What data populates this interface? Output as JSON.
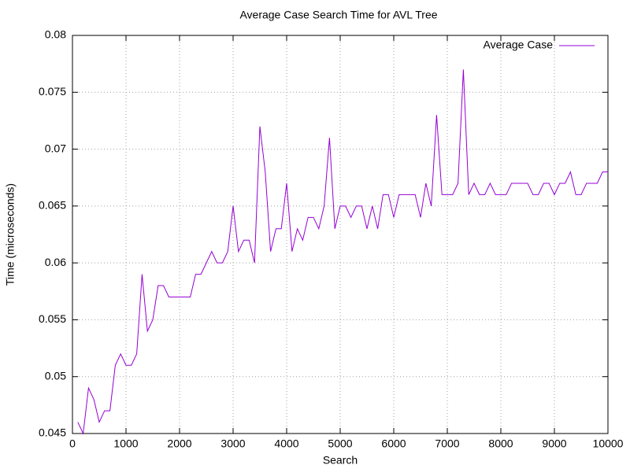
{
  "chart_data": {
    "type": "line",
    "title": "Average Case Search Time for AVL Tree",
    "x_label": "Search",
    "y_label": "Time (microseconds)",
    "x": [
      100,
      200,
      300,
      400,
      500,
      600,
      700,
      800,
      900,
      1000,
      1100,
      1200,
      1300,
      1400,
      1500,
      1600,
      1700,
      1800,
      1900,
      2000,
      2100,
      2200,
      2300,
      2400,
      2500,
      2600,
      2700,
      2800,
      2900,
      3000,
      3100,
      3200,
      3300,
      3400,
      3500,
      3600,
      3700,
      3800,
      3900,
      4000,
      4100,
      4200,
      4300,
      4400,
      4500,
      4600,
      4700,
      4800,
      4900,
      5000,
      5100,
      5200,
      5300,
      5400,
      5500,
      5600,
      5700,
      5800,
      5900,
      6000,
      6100,
      6200,
      6300,
      6400,
      6500,
      6600,
      6700,
      6800,
      6900,
      7000,
      7100,
      7200,
      7300,
      7400,
      7500,
      7600,
      7700,
      7800,
      7900,
      8000,
      8100,
      8200,
      8300,
      8400,
      8500,
      8600,
      8700,
      8800,
      8900,
      9000,
      9100,
      9200,
      9300,
      9400,
      9500,
      9600,
      9700,
      9800,
      9900,
      10000
    ],
    "series": [
      {
        "name": "Average Case",
        "color": "#9400d3",
        "values": [
          0.046,
          0.045,
          0.049,
          0.048,
          0.046,
          0.047,
          0.047,
          0.051,
          0.052,
          0.051,
          0.051,
          0.052,
          0.059,
          0.054,
          0.055,
          0.058,
          0.058,
          0.057,
          0.057,
          0.057,
          0.057,
          0.057,
          0.059,
          0.059,
          0.06,
          0.061,
          0.06,
          0.06,
          0.061,
          0.065,
          0.061,
          0.062,
          0.062,
          0.06,
          0.072,
          0.068,
          0.061,
          0.063,
          0.063,
          0.067,
          0.061,
          0.063,
          0.062,
          0.064,
          0.064,
          0.063,
          0.065,
          0.071,
          0.063,
          0.065,
          0.065,
          0.064,
          0.065,
          0.065,
          0.063,
          0.065,
          0.063,
          0.066,
          0.066,
          0.064,
          0.066,
          0.066,
          0.066,
          0.066,
          0.064,
          0.067,
          0.065,
          0.073,
          0.066,
          0.066,
          0.066,
          0.067,
          0.077,
          0.066,
          0.067,
          0.066,
          0.066,
          0.067,
          0.066,
          0.066,
          0.066,
          0.067,
          0.067,
          0.067,
          0.067,
          0.066,
          0.066,
          0.067,
          0.067,
          0.066,
          0.067,
          0.067,
          0.068,
          0.066,
          0.066,
          0.067,
          0.067,
          0.067,
          0.068,
          0.068
        ]
      }
    ],
    "xlim": [
      0,
      10000
    ],
    "xticks": [
      0,
      1000,
      2000,
      3000,
      4000,
      5000,
      6000,
      7000,
      8000,
      9000,
      10000
    ],
    "ylim": [
      0.045,
      0.08
    ],
    "yticks": [
      0.045,
      0.05,
      0.055,
      0.06,
      0.065,
      0.07,
      0.075,
      0.08
    ],
    "grid": true,
    "legend": "top-right"
  }
}
